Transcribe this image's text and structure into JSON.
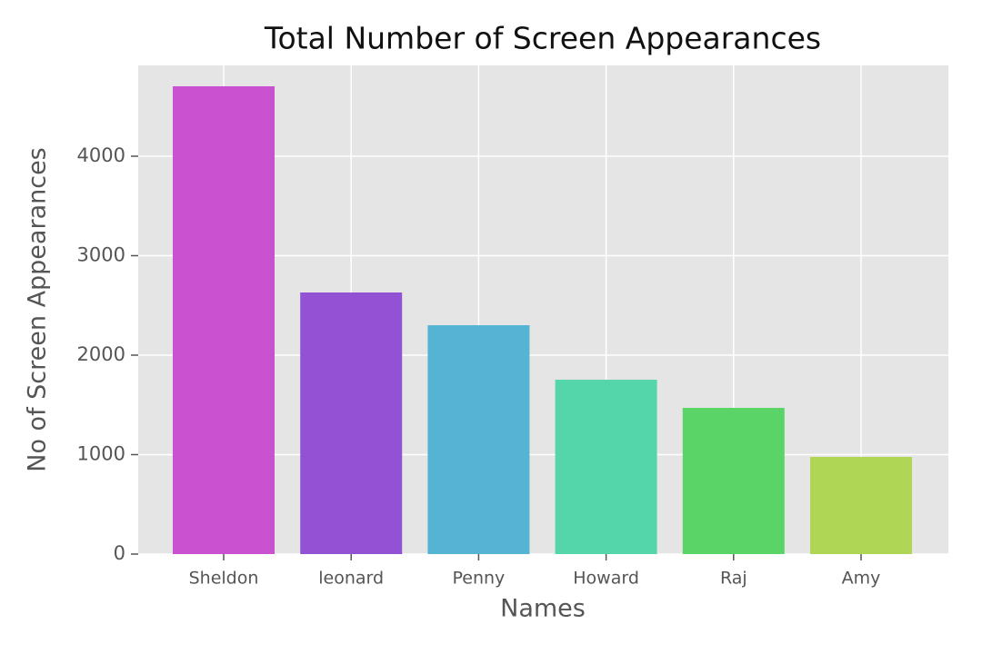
{
  "chart_data": {
    "type": "bar",
    "title": "Total Number of Screen Appearances",
    "xlabel": "Names",
    "ylabel": "No of Screen Appearances",
    "categories": [
      "Sheldon",
      "leonard",
      "Penny",
      "Howard",
      "Raj",
      "Amy"
    ],
    "values": [
      4703,
      2630,
      2301,
      1753,
      1470,
      977
    ],
    "colors": [
      "#c852d0",
      "#9352d4",
      "#55b4d4",
      "#55d6aa",
      "#5ad466",
      "#b0d655"
    ],
    "ylim": [
      0,
      4913
    ],
    "yticks": [
      0,
      1000,
      2000,
      3000,
      4000
    ],
    "grid": true
  }
}
